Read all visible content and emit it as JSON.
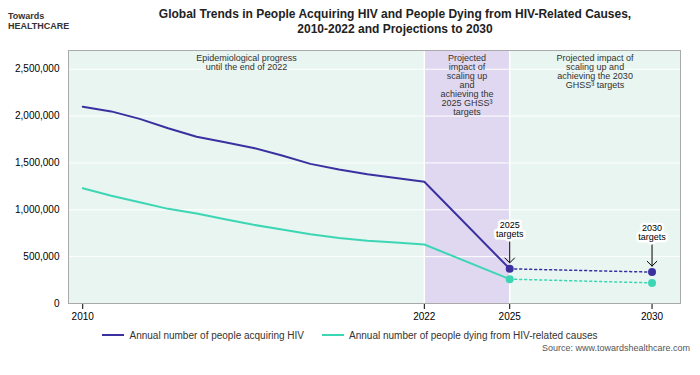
{
  "chart_data": {
    "type": "line",
    "title": "Global Trends in People Acquiring HIV and People Dying from HIV-Related Causes,\n2010-2022 and Projections to 2030",
    "source": "Source: www.towardshealthcare.com",
    "x": [
      2010,
      2011,
      2012,
      2013,
      2014,
      2015,
      2016,
      2017,
      2018,
      2019,
      2020,
      2021,
      2022,
      2025,
      2030
    ],
    "series": [
      {
        "name": "Annual number of people acquiring HIV",
        "color": "#3a30a0",
        "values": [
          2100000,
          2050000,
          1970000,
          1870000,
          1780000,
          1720000,
          1660000,
          1580000,
          1490000,
          1430000,
          1380000,
          1340000,
          1300000,
          370000,
          335000
        ]
      },
      {
        "name": "Annual number of people dying from HIV-related causes",
        "color": "#3dd6b5",
        "values": [
          1230000,
          1150000,
          1080000,
          1010000,
          960000,
          900000,
          840000,
          790000,
          740000,
          700000,
          670000,
          650000,
          630000,
          260000,
          220000
        ]
      }
    ],
    "regions": [
      {
        "start": 2009.5,
        "end": 2022,
        "color": "#e8f5f0",
        "label": "Epidemiological progress\nuntil the end of 2022"
      },
      {
        "start": 2022,
        "end": 2025,
        "color": "#e0d8f0",
        "label": "Projected\nimpact of\nscaling up\nand\nachieving the\n2025 GHSS³\ntargets"
      },
      {
        "start": 2025,
        "end": 2031,
        "color": "#e8f5f0",
        "label": "Projected impact of\nscaling up and\nachieving the 2030\nGHSS³ targets"
      }
    ],
    "annotations": [
      {
        "text": "2025\ntargets",
        "x": 2025,
        "y": 370000
      },
      {
        "text": "2030\ntargets",
        "x": 2030,
        "y": 335000
      },
      {
        "text": "Towards\nHEALTHCARE"
      }
    ],
    "xlim": [
      2009.5,
      2031
    ],
    "xticks": [
      2010,
      2022,
      2025,
      2030
    ],
    "ylim": [
      0,
      2700000
    ],
    "yticks": [
      0,
      {
        "value": 500000,
        "label": "500,000"
      },
      {
        "value": 1000000,
        "label": "1,000,000"
      },
      {
        "value": 1500000,
        "label": "1,500,000"
      },
      {
        "value": 2000000,
        "label": "2,000,000"
      },
      {
        "value": 2500000,
        "label": "2,500,000"
      }
    ],
    "grid": true,
    "legend": "bottom"
  }
}
